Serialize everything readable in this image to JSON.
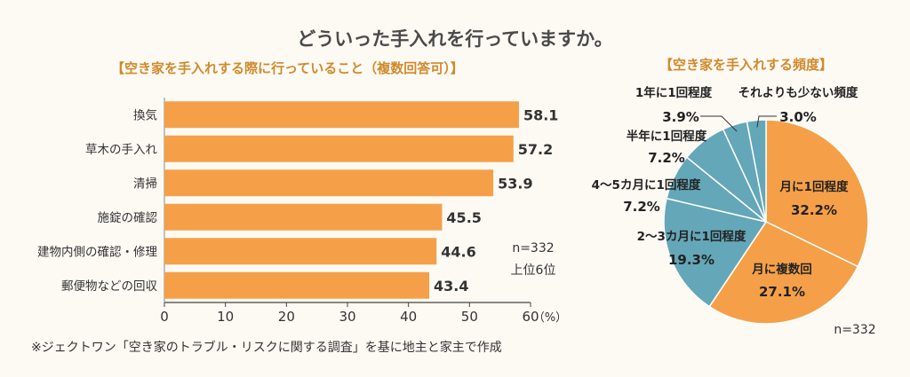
{
  "title": "どういった手入れを行っていますか。",
  "footnote": "※ジェクトワン「空き家のトラブル・リスクに関する調査」を基に地主と家主で作成",
  "colors": {
    "orange": "#f5a048",
    "teal": "#64a7b8",
    "title_accent": "#cf8a2c"
  },
  "chart_data": [
    {
      "type": "bar",
      "orientation": "horizontal",
      "title": "【空き家を手入れする際に行っていること（複数回答可）】",
      "categories": [
        "換気",
        "草木の手入れ",
        "清掃",
        "施錠の確認",
        "建物内側の確認・修理",
        "郵便物などの回収"
      ],
      "values": [
        58.1,
        57.2,
        53.9,
        45.5,
        44.6,
        43.4
      ],
      "value_labels": [
        "58.1",
        "57.2",
        "53.9",
        "45.5",
        "44.6",
        "43.4"
      ],
      "xlim": [
        0,
        60
      ],
      "x_ticks": [
        "0",
        "10",
        "20",
        "30",
        "40",
        "50",
        "60"
      ],
      "x_unit": "（%）",
      "annotation": [
        "n=332",
        "上位6位"
      ]
    },
    {
      "type": "pie",
      "title": "【空き家を手入れする頻度】",
      "slices": [
        {
          "label": "月に1回程度",
          "value": 32.2,
          "value_label": "32.2%",
          "color": "#f5a048"
        },
        {
          "label": "月に複数回",
          "value": 27.1,
          "value_label": "27.1%",
          "color": "#f5a048"
        },
        {
          "label": "2〜3カ月に1回程度",
          "value": 19.3,
          "value_label": "19.3%",
          "color": "#64a7b8"
        },
        {
          "label": "4〜5カ月に1回程度",
          "value": 7.2,
          "value_label": "7.2%",
          "color": "#64a7b8"
        },
        {
          "label": "半年に1回程度",
          "value": 7.2,
          "value_label": "7.2%",
          "color": "#64a7b8"
        },
        {
          "label": "1年に1回程度",
          "value": 3.9,
          "value_label": "3.9%",
          "color": "#64a7b8"
        },
        {
          "label": "それよりも少ない頻度",
          "value": 3.0,
          "value_label": "3.0%",
          "color": "#64a7b8"
        }
      ],
      "annotation": "n=332"
    }
  ]
}
